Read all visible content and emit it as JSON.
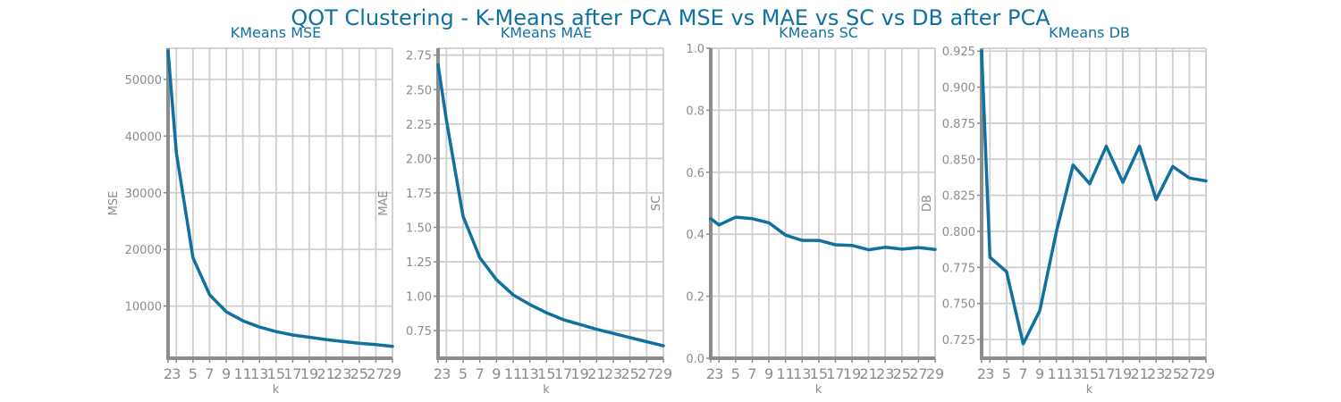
{
  "figure": {
    "title": "QOT Clustering - K-Means after PCA MSE vs MAE vs SC vs DB after PCA"
  },
  "colors": {
    "line": "#1070a0",
    "title": "#1070a0",
    "axis": "#8c8c8c",
    "grid": "#cfcfcf"
  },
  "chart_data": [
    {
      "type": "line",
      "title": "KMeans MSE",
      "xlabel": "k",
      "ylabel": "MSE",
      "x": [
        2,
        3,
        5,
        7,
        9,
        11,
        13,
        15,
        17,
        19,
        21,
        23,
        25,
        27,
        29
      ],
      "y": [
        55000,
        37000,
        18500,
        12000,
        9000,
        7400,
        6300,
        5500,
        4900,
        4500,
        4100,
        3750,
        3450,
        3200,
        2900
      ],
      "xticks": [
        2,
        3,
        5,
        7,
        9,
        11,
        13,
        15,
        17,
        19,
        21,
        23,
        25,
        27,
        29
      ],
      "yticks": [
        10000,
        20000,
        30000,
        40000,
        50000
      ],
      "xlim": [
        2,
        29
      ],
      "ylim": [
        800,
        55500
      ],
      "grid": true
    },
    {
      "type": "line",
      "title": "KMeans MAE",
      "xlabel": "k",
      "ylabel": "MAE",
      "x": [
        2,
        3,
        5,
        7,
        9,
        11,
        13,
        15,
        17,
        19,
        21,
        23,
        25,
        27,
        29
      ],
      "y": [
        2.68,
        2.28,
        1.58,
        1.28,
        1.12,
        1.01,
        0.94,
        0.88,
        0.83,
        0.795,
        0.76,
        0.73,
        0.7,
        0.67,
        0.64
      ],
      "xticks": [
        2,
        3,
        5,
        7,
        9,
        11,
        13,
        15,
        17,
        19,
        21,
        23,
        25,
        27,
        29
      ],
      "yticks": [
        0.75,
        1.0,
        1.25,
        1.5,
        1.75,
        2.0,
        2.25,
        2.5,
        2.75
      ],
      "xlim": [
        2,
        29
      ],
      "ylim": [
        0.55,
        2.8
      ],
      "grid": true
    },
    {
      "type": "line",
      "title": "KMeans SC",
      "xlabel": "k",
      "ylabel": "SC",
      "x": [
        2,
        3,
        5,
        7,
        9,
        11,
        13,
        15,
        17,
        19,
        21,
        23,
        25,
        27,
        29
      ],
      "y": [
        0.45,
        0.43,
        0.455,
        0.45,
        0.437,
        0.397,
        0.38,
        0.38,
        0.366,
        0.364,
        0.35,
        0.358,
        0.352,
        0.357,
        0.351
      ],
      "xticks": [
        2,
        3,
        5,
        7,
        9,
        11,
        13,
        15,
        17,
        19,
        21,
        23,
        25,
        27,
        29
      ],
      "yticks": [
        0.0,
        0.2,
        0.4,
        0.6,
        0.8,
        1.0
      ],
      "xlim": [
        2,
        29
      ],
      "ylim": [
        0,
        1
      ],
      "grid": true
    },
    {
      "type": "line",
      "title": "KMeans DB",
      "xlabel": "k",
      "ylabel": "DB",
      "x": [
        2,
        3,
        5,
        7,
        9,
        11,
        13,
        15,
        17,
        19,
        21,
        23,
        25,
        27,
        29
      ],
      "y": [
        0.925,
        0.782,
        0.772,
        0.722,
        0.745,
        0.8,
        0.846,
        0.833,
        0.859,
        0.834,
        0.859,
        0.822,
        0.845,
        0.837,
        0.835
      ],
      "xticks": [
        2,
        3,
        5,
        7,
        9,
        11,
        13,
        15,
        17,
        19,
        21,
        23,
        25,
        27,
        29
      ],
      "yticks": [
        0.725,
        0.75,
        0.775,
        0.8,
        0.825,
        0.85,
        0.875,
        0.9,
        0.925
      ],
      "xlim": [
        2,
        29
      ],
      "ylim": [
        0.712,
        0.927
      ],
      "grid": true
    }
  ]
}
